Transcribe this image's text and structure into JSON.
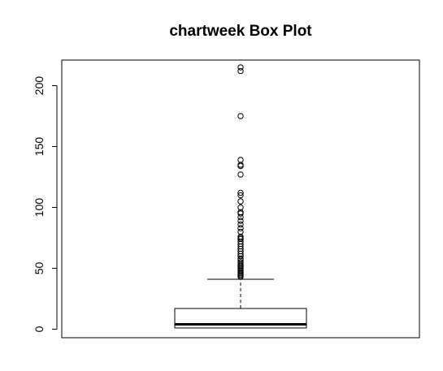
{
  "chart_data": {
    "type": "box",
    "title": "chartweek  Box Plot",
    "xlabel": "",
    "ylabel": "",
    "ylim": [
      -7,
      221
    ],
    "y_ticks": [
      0,
      50,
      100,
      150,
      200
    ],
    "y_tick_labels": [
      "0",
      "50",
      "100",
      "150",
      "200"
    ],
    "grid": false,
    "box": {
      "min": 1,
      "q1": 1,
      "median": 4,
      "q3": 17,
      "whisker_low": 1,
      "whisker_high": 41
    },
    "outliers": [
      43,
      44,
      45,
      46,
      47,
      48,
      49,
      50,
      51,
      52,
      53,
      55,
      57,
      58,
      60,
      62,
      64,
      66,
      68,
      70,
      72,
      74,
      75,
      76,
      80,
      83,
      86,
      89,
      92,
      95,
      96,
      100,
      105,
      110,
      112,
      127,
      134,
      135,
      139,
      175,
      212,
      215
    ],
    "colors": {
      "stroke": "#000000",
      "background": "#ffffff"
    }
  }
}
